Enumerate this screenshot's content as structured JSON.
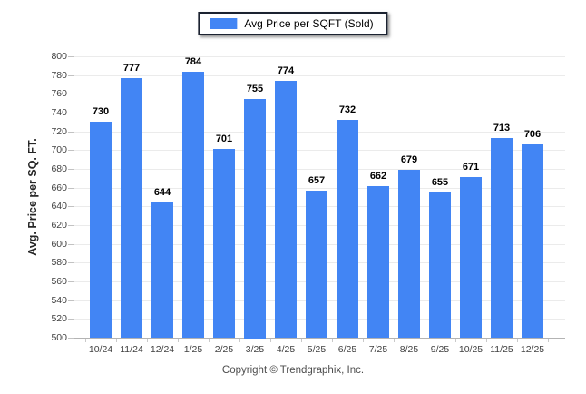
{
  "legend": {
    "label": "Avg Price per SQFT (Sold)",
    "swatch_color": "#4285F4"
  },
  "chart_data": {
    "type": "bar",
    "title": "",
    "series_name": "Avg Price per SQFT (Sold)",
    "categories": [
      "10/24",
      "11/24",
      "12/24",
      "1/25",
      "2/25",
      "3/25",
      "4/25",
      "5/25",
      "6/25",
      "7/25",
      "8/25",
      "9/25",
      "10/25",
      "11/25",
      "12/25"
    ],
    "values": [
      730,
      777,
      644,
      784,
      701,
      755,
      774,
      657,
      732,
      662,
      679,
      655,
      671,
      713,
      706
    ],
    "xlabel": "",
    "ylabel": "Avg. Price per SQ. FT.",
    "ylim": [
      500,
      800
    ],
    "ytick_step": 20,
    "grid": true,
    "legend_position": "top-center",
    "bar_color": "#4285F4",
    "value_label_color": "#000000",
    "grid_color": "#ebebeb",
    "axis_color": "#b3b3b3",
    "tick_label_color": "#404040"
  },
  "footer": {
    "text": "Copyright © Trendgraphix, Inc."
  }
}
